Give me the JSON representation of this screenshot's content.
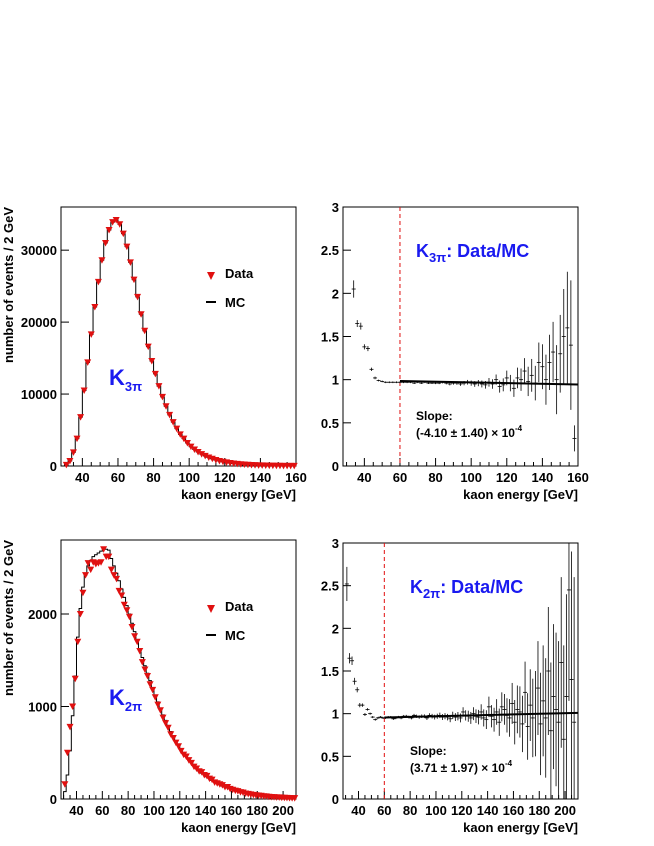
{
  "chart_data": [
    {
      "type": "bar",
      "id": "k3pi_spectrum",
      "xlabel": "kaon energy [GeV]",
      "ylabel": "number of events / 2 GeV",
      "xlim": [
        28,
        160
      ],
      "ylim": [
        0,
        36000
      ],
      "xticks": [
        40,
        60,
        80,
        100,
        120,
        140,
        160
      ],
      "yticks": [
        0,
        10000,
        20000,
        30000
      ],
      "label_main": "K",
      "label_sub": "3π",
      "legend": [
        "Data",
        "MC"
      ],
      "legend_position": "top-right",
      "x": [
        29,
        31,
        33,
        35,
        37,
        39,
        41,
        43,
        45,
        47,
        49,
        51,
        53,
        55,
        57,
        59,
        61,
        63,
        65,
        67,
        69,
        71,
        73,
        75,
        77,
        79,
        81,
        83,
        85,
        87,
        89,
        91,
        93,
        95,
        97,
        99,
        101,
        103,
        105,
        107,
        109,
        111,
        113,
        115,
        117,
        119,
        121,
        123,
        125,
        127,
        129,
        131,
        133,
        135,
        137,
        139,
        141,
        143,
        145,
        147,
        149,
        151,
        153,
        155,
        157,
        159
      ],
      "mc": [
        0,
        150,
        700,
        1900,
        3800,
        6800,
        10500,
        14400,
        18300,
        22100,
        25600,
        28600,
        31000,
        32800,
        33900,
        34200,
        33600,
        32300,
        30500,
        28300,
        25900,
        23500,
        21100,
        18800,
        16600,
        14600,
        12800,
        11100,
        9600,
        8300,
        7100,
        6100,
        5200,
        4400,
        3800,
        3200,
        2700,
        2300,
        1950,
        1650,
        1400,
        1180,
        1000,
        840,
        700,
        590,
        500,
        420,
        350,
        290,
        240,
        200,
        170,
        140,
        115,
        95,
        80,
        65,
        55,
        45,
        38,
        31,
        26,
        21,
        17,
        14
      ],
      "data": [
        0,
        150,
        700,
        1900,
        3800,
        6800,
        10500,
        14400,
        18300,
        22100,
        25600,
        28600,
        31000,
        32800,
        33900,
        34200,
        33600,
        32300,
        30500,
        28300,
        25900,
        23500,
        21100,
        18800,
        16600,
        14600,
        12800,
        11100,
        9600,
        8300,
        7100,
        6100,
        5200,
        4400,
        3800,
        3200,
        2700,
        2300,
        1950,
        1650,
        1400,
        1180,
        1000,
        840,
        700,
        590,
        500,
        420,
        350,
        290,
        240,
        200,
        170,
        140,
        115,
        95,
        80,
        65,
        55,
        45,
        38,
        31,
        26,
        21,
        17,
        14
      ]
    },
    {
      "type": "scatter",
      "id": "k3pi_ratio",
      "xlabel": "kaon energy [GeV]",
      "ylabel": "",
      "xlim": [
        28,
        160
      ],
      "ylim": [
        0,
        3
      ],
      "xticks": [
        40,
        60,
        80,
        100,
        120,
        140,
        160
      ],
      "yticks": [
        0,
        0.5,
        1,
        1.5,
        2,
        2.5,
        3
      ],
      "title_main": "K",
      "title_sub": "3π",
      "title_rest": ": Data/MC",
      "cut_line": 60,
      "slope_title": "Slope:",
      "slope_value": "(-4.10 ± 1.40) × 10",
      "slope_exp": "-4",
      "fit": {
        "x": [
          60,
          160
        ],
        "y": [
          0.985,
          0.944
        ]
      },
      "x": [
        34,
        36,
        38,
        40,
        42,
        44,
        46,
        48,
        50,
        52,
        54,
        56,
        58,
        60,
        62,
        64,
        66,
        68,
        70,
        72,
        74,
        76,
        78,
        80,
        82,
        84,
        86,
        88,
        90,
        92,
        94,
        96,
        98,
        100,
        102,
        104,
        106,
        108,
        110,
        112,
        114,
        116,
        118,
        120,
        122,
        124,
        126,
        128,
        130,
        132,
        134,
        136,
        138,
        140,
        142,
        144,
        146,
        148,
        150,
        152,
        154,
        156,
        158
      ],
      "y": [
        2.05,
        1.65,
        1.62,
        1.38,
        1.36,
        1.12,
        1.02,
        0.99,
        0.98,
        0.97,
        0.97,
        0.97,
        0.97,
        0.97,
        0.97,
        0.97,
        0.97,
        0.96,
        0.97,
        0.96,
        0.97,
        0.96,
        0.96,
        0.96,
        0.96,
        0.97,
        0.96,
        0.95,
        0.96,
        0.96,
        0.95,
        0.96,
        0.97,
        0.96,
        0.95,
        0.96,
        0.95,
        0.94,
        0.97,
        0.95,
        1.0,
        0.92,
        0.94,
        1.02,
        0.96,
        0.9,
        1.02,
        1.0,
        1.1,
        0.98,
        1.05,
        0.96,
        1.2,
        1.15,
        1.0,
        1.2,
        1.32,
        1.0,
        1.3,
        1.5,
        1.6,
        1.4,
        0.32
      ],
      "err": [
        0.1,
        0.04,
        0.04,
        0.03,
        0.03,
        0.02,
        0.015,
        0.01,
        0.01,
        0.01,
        0.01,
        0.01,
        0.01,
        0.01,
        0.01,
        0.01,
        0.01,
        0.01,
        0.01,
        0.01,
        0.01,
        0.01,
        0.01,
        0.012,
        0.012,
        0.014,
        0.015,
        0.016,
        0.018,
        0.02,
        0.022,
        0.024,
        0.027,
        0.03,
        0.033,
        0.036,
        0.04,
        0.044,
        0.05,
        0.055,
        0.06,
        0.07,
        0.075,
        0.085,
        0.095,
        0.1,
        0.12,
        0.13,
        0.15,
        0.17,
        0.19,
        0.2,
        0.23,
        0.26,
        0.29,
        0.32,
        0.35,
        0.4,
        0.45,
        0.55,
        0.65,
        0.75,
        0.15
      ]
    },
    {
      "type": "bar",
      "id": "k2pi_spectrum",
      "xlabel": "kaon energy [GeV]",
      "ylabel": "number of events / 2 GeV",
      "xlim": [
        28,
        210
      ],
      "ylim": [
        0,
        2800
      ],
      "xticks": [
        40,
        60,
        80,
        100,
        120,
        140,
        160,
        180,
        200
      ],
      "yticks": [
        0,
        1000,
        2000
      ],
      "label_main": "K",
      "label_sub": "2π",
      "legend": [
        "Data",
        "MC"
      ],
      "legend_position": "top-right",
      "x": [
        29,
        31,
        33,
        35,
        37,
        39,
        41,
        43,
        45,
        47,
        49,
        51,
        53,
        55,
        57,
        59,
        61,
        63,
        65,
        67,
        69,
        71,
        73,
        75,
        77,
        79,
        81,
        83,
        85,
        87,
        89,
        91,
        93,
        95,
        97,
        99,
        101,
        103,
        105,
        107,
        109,
        111,
        113,
        115,
        117,
        119,
        121,
        123,
        125,
        127,
        129,
        131,
        133,
        135,
        137,
        139,
        141,
        143,
        145,
        147,
        149,
        151,
        153,
        155,
        157,
        159,
        161,
        163,
        165,
        167,
        169,
        171,
        173,
        175,
        177,
        179,
        181,
        183,
        185,
        187,
        189,
        191,
        193,
        195,
        197,
        199,
        201,
        203,
        205,
        207,
        209
      ],
      "mc": [
        0,
        80,
        260,
        520,
        900,
        1330,
        1750,
        2060,
        2290,
        2420,
        2520,
        2580,
        2620,
        2640,
        2660,
        2680,
        2720,
        2700,
        2690,
        2600,
        2520,
        2440,
        2360,
        2270,
        2180,
        2090,
        2000,
        1900,
        1810,
        1720,
        1620,
        1530,
        1440,
        1360,
        1280,
        1200,
        1120,
        1050,
        980,
        910,
        850,
        790,
        730,
        680,
        630,
        580,
        540,
        500,
        460,
        420,
        390,
        360,
        330,
        300,
        280,
        260,
        240,
        220,
        200,
        185,
        170,
        155,
        140,
        130,
        120,
        110,
        100,
        90,
        82,
        75,
        68,
        62,
        56,
        51,
        46,
        42,
        38,
        34,
        31,
        28,
        25,
        22,
        20,
        18,
        16,
        14,
        13,
        12,
        11,
        10,
        9
      ],
      "data": [
        0,
        160,
        500,
        780,
        1000,
        1300,
        1700,
        2000,
        2230,
        2420,
        2550,
        2480,
        2560,
        2540,
        2550,
        2560,
        2700,
        2620,
        2620,
        2480,
        2420,
        2380,
        2250,
        2200,
        2100,
        2040,
        1970,
        1860,
        1760,
        1700,
        1600,
        1480,
        1400,
        1330,
        1240,
        1180,
        1100,
        1020,
        960,
        880,
        820,
        770,
        700,
        660,
        610,
        570,
        520,
        480,
        460,
        420,
        390,
        350,
        330,
        300,
        290,
        260,
        250,
        220,
        210,
        180,
        170,
        160,
        150,
        130,
        130,
        110,
        100,
        90,
        85,
        75,
        70,
        60,
        55,
        50,
        45,
        40,
        38,
        35,
        30,
        28,
        25,
        22,
        20,
        18,
        17,
        15,
        13,
        12,
        11,
        10,
        9
      ]
    },
    {
      "type": "scatter",
      "id": "k2pi_ratio",
      "xlabel": "kaon energy [GeV]",
      "ylabel": "",
      "xlim": [
        28,
        210
      ],
      "ylim": [
        0,
        3
      ],
      "xticks": [
        40,
        60,
        80,
        100,
        120,
        140,
        160,
        180,
        200
      ],
      "yticks": [
        0,
        0.5,
        1,
        1.5,
        2,
        2.5,
        3
      ],
      "title_main": "K",
      "title_sub": "2π",
      "title_rest": ": Data/MC",
      "cut_line": 60,
      "slope_title": "Slope:",
      "slope_value": "(3.71 ± 1.97) × 10",
      "slope_exp": "-4",
      "fit": {
        "x": [
          60,
          210
        ],
        "y": [
          0.955,
          1.01
        ]
      },
      "x": [
        31,
        33,
        35,
        37,
        39,
        41,
        43,
        45,
        47,
        49,
        51,
        53,
        55,
        57,
        59,
        61,
        63,
        65,
        67,
        69,
        71,
        73,
        75,
        77,
        79,
        81,
        83,
        85,
        87,
        89,
        91,
        93,
        95,
        97,
        99,
        101,
        103,
        105,
        107,
        109,
        111,
        113,
        115,
        117,
        119,
        121,
        123,
        125,
        127,
        129,
        131,
        133,
        135,
        137,
        139,
        141,
        143,
        145,
        147,
        149,
        151,
        153,
        155,
        157,
        159,
        161,
        163,
        165,
        167,
        169,
        171,
        173,
        175,
        177,
        179,
        181,
        183,
        185,
        187,
        189,
        191,
        193,
        195,
        197,
        199,
        201,
        203,
        205,
        207
      ],
      "y": [
        2.52,
        1.65,
        1.62,
        1.38,
        1.28,
        1.1,
        1.1,
        0.99,
        1.05,
        1.0,
        0.96,
        0.93,
        0.95,
        0.96,
        0.95,
        0.95,
        0.96,
        0.96,
        0.94,
        0.95,
        0.96,
        0.95,
        0.97,
        0.97,
        0.96,
        0.95,
        0.98,
        0.97,
        0.96,
        0.97,
        0.97,
        0.95,
        0.98,
        0.97,
        0.96,
        0.97,
        0.98,
        0.96,
        0.97,
        0.96,
        0.94,
        0.98,
        0.96,
        0.97,
        0.95,
        1.02,
        0.98,
        0.97,
        0.95,
        1.0,
        0.97,
        0.96,
        1.02,
        0.95,
        0.93,
        1.08,
        0.97,
        0.93,
        1.02,
        0.9,
        1.08,
        1.05,
        0.98,
        0.95,
        1.12,
        0.9,
        1.05,
        1.02,
        0.88,
        1.25,
        0.85,
        1.1,
        0.95,
        1.0,
        1.3,
        0.88,
        1.15,
        0.95,
        1.5,
        0.8,
        1.2,
        1.05,
        0.9,
        1.6,
        0.7,
        1.2,
        2.45,
        1.4,
        0.9
      ],
      "err": [
        0.2,
        0.06,
        0.05,
        0.04,
        0.03,
        0.025,
        0.02,
        0.018,
        0.015,
        0.013,
        0.012,
        0.012,
        0.012,
        0.012,
        0.012,
        0.012,
        0.013,
        0.013,
        0.013,
        0.014,
        0.014,
        0.015,
        0.015,
        0.016,
        0.016,
        0.017,
        0.018,
        0.019,
        0.02,
        0.021,
        0.022,
        0.024,
        0.025,
        0.027,
        0.028,
        0.03,
        0.032,
        0.034,
        0.036,
        0.038,
        0.04,
        0.043,
        0.046,
        0.049,
        0.052,
        0.055,
        0.06,
        0.065,
        0.07,
        0.075,
        0.08,
        0.085,
        0.09,
        0.1,
        0.11,
        0.12,
        0.13,
        0.14,
        0.15,
        0.16,
        0.17,
        0.18,
        0.2,
        0.22,
        0.24,
        0.26,
        0.28,
        0.3,
        0.33,
        0.36,
        0.39,
        0.42,
        0.46,
        0.5,
        0.55,
        0.6,
        0.65,
        0.7,
        0.75,
        0.8,
        0.85,
        0.9,
        0.95,
        1.0,
        1.1,
        1.2,
        1.3,
        1.5,
        1.7
      ]
    }
  ]
}
